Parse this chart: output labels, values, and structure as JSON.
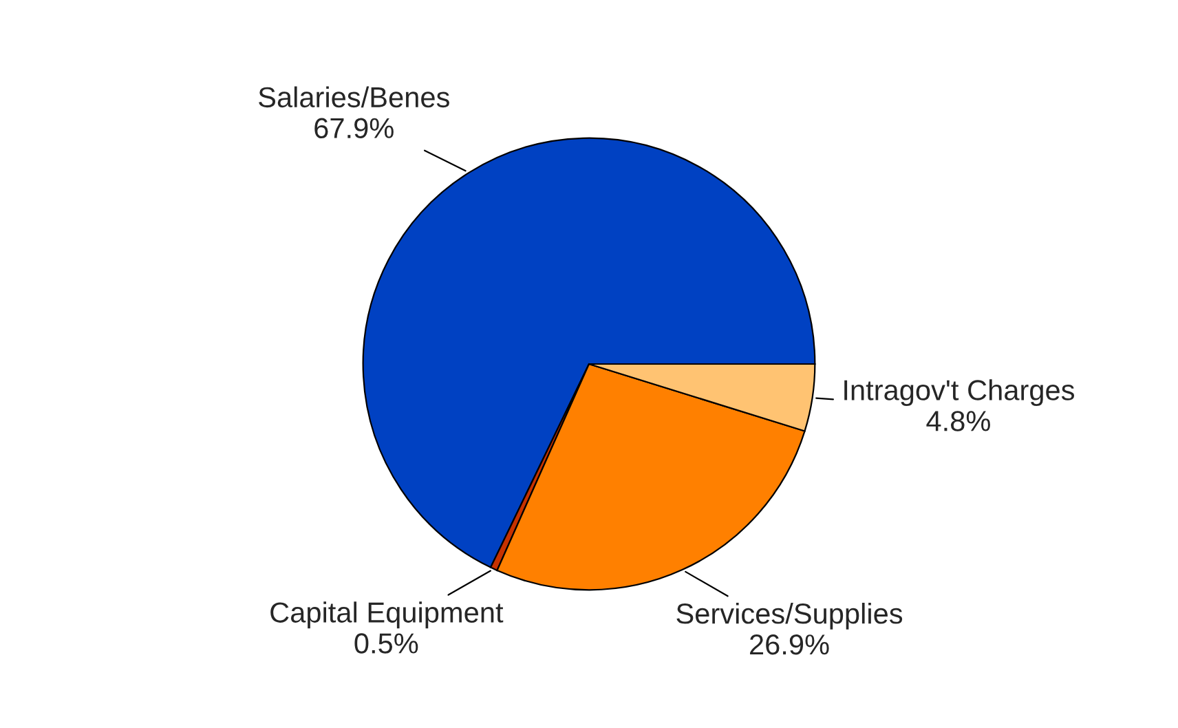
{
  "chart_data": {
    "type": "pie",
    "categories": [
      "Salaries/Benes",
      "Capital Equipment",
      "Services/Supplies",
      "Intragov't Charges"
    ],
    "values": [
      67.9,
      0.5,
      26.9,
      4.8
    ],
    "value_labels": [
      "67.9%",
      "0.5%",
      "26.9%",
      "4.8%"
    ],
    "colors": [
      "#0041c2",
      "#c83200",
      "#ff8000",
      "#ffc372"
    ],
    "legend": false
  }
}
